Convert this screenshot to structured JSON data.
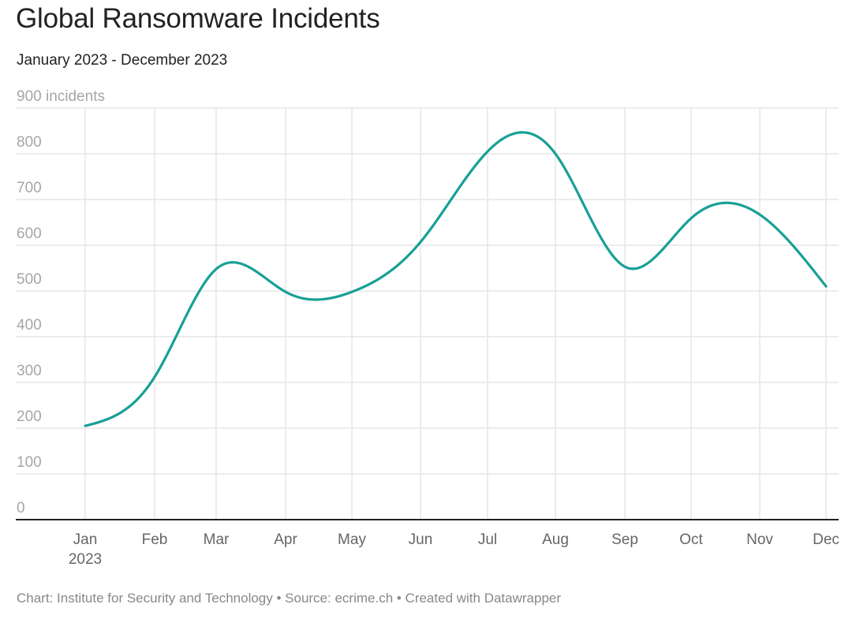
{
  "header": {
    "title": "Global Ransomware Incidents",
    "subtitle": "January 2023 - December 2023"
  },
  "footer": {
    "credit": "Chart: Institute for Security and Technology • Source: ecrime.ch • Created with Datawrapper"
  },
  "colors": {
    "line": "#17a096",
    "grid": "#e6e6e6",
    "axis": "#222222"
  },
  "chart_data": {
    "type": "line",
    "title": "Global Ransomware Incidents",
    "subtitle": "January 2023 - December 2023",
    "xlabel": "",
    "ylabel": "incidents",
    "x": [
      "Jan",
      "Feb",
      "Mar",
      "Apr",
      "May",
      "Jun",
      "Jul",
      "Aug",
      "Sep",
      "Oct",
      "Nov",
      "Dec"
    ],
    "x_tick_labels": [
      "Jan\n2023",
      "Feb",
      "Mar",
      "Apr",
      "May",
      "Jun",
      "Jul",
      "Aug",
      "Sep",
      "Oct",
      "Nov",
      "Dec"
    ],
    "series": [
      {
        "name": "Ransomware incidents",
        "values": [
          205,
          312,
          548,
          498,
          498,
          607,
          805,
          800,
          553,
          659,
          667,
          510
        ]
      }
    ],
    "ylim": [
      0,
      900
    ],
    "y_ticks": [
      0,
      100,
      200,
      300,
      400,
      500,
      600,
      700,
      800,
      900
    ],
    "y_tick_labels": [
      "0",
      "100",
      "200",
      "300",
      "400",
      "500",
      "600",
      "700",
      "800",
      "900 incidents"
    ],
    "grid": true,
    "legend": "none",
    "interpolation": "curved",
    "source": "Chart: Institute for Security and Technology • Source: ecrime.ch • Created with Datawrapper"
  }
}
